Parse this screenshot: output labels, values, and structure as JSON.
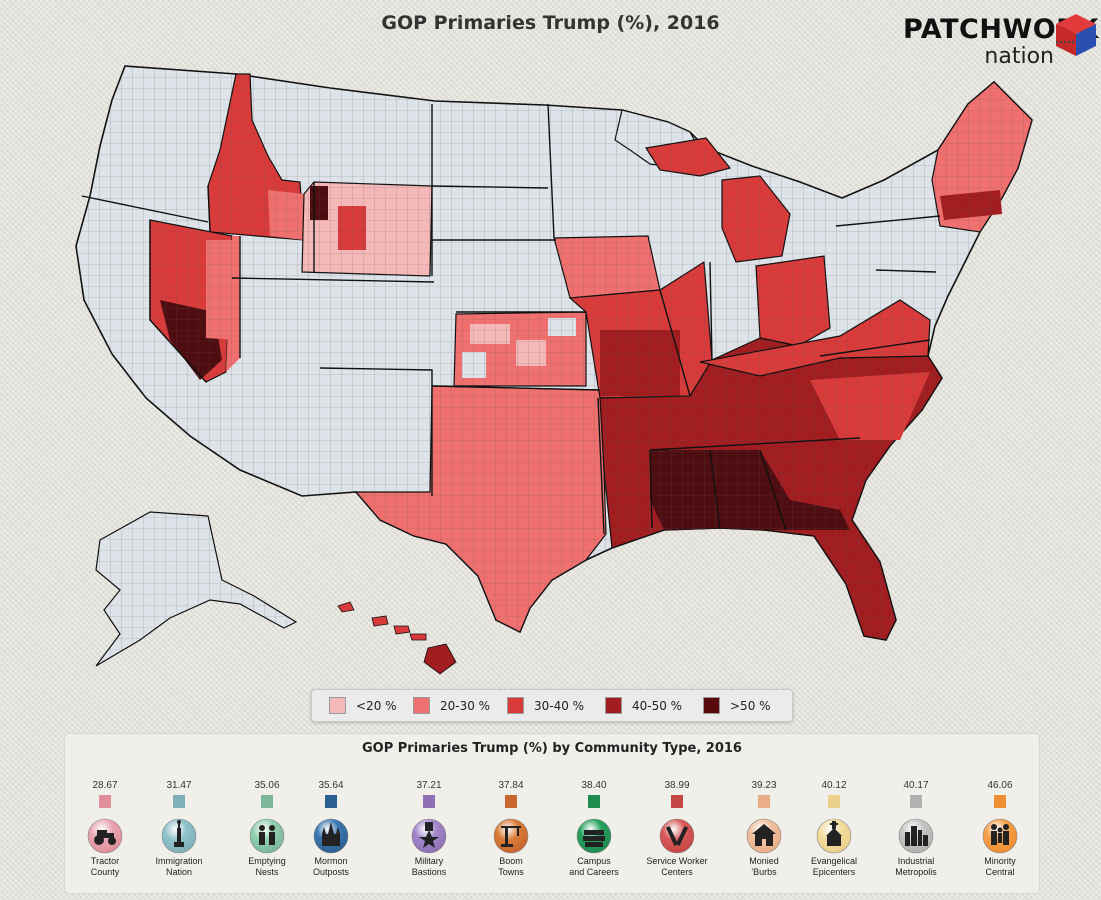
{
  "title": "GOP Primaries Trump (%), 2016",
  "logo": {
    "word": "PATCHWORK",
    "sub": "nation"
  },
  "colors": {
    "lt20": "#f5b8b8",
    "r20_30": "#f07070",
    "r30_40": "#d93a3a",
    "r40_50": "#a11d20",
    "gt50": "#4e0d10",
    "nodata": "#dde3e8",
    "water": "#e7e5de",
    "border": "#111111"
  },
  "legend": {
    "items": [
      {
        "label": "<20 %",
        "color": "#f5b8b8"
      },
      {
        "label": "20-30 %",
        "color": "#f07070"
      },
      {
        "label": "30-40 %",
        "color": "#d93a3a"
      },
      {
        "label": "40-50 %",
        "color": "#a11d20"
      },
      {
        "label": ">50 %",
        "color": "#5a0a0c"
      }
    ]
  },
  "community": {
    "title": "GOP Primaries Trump (%) by Community Type, 2016",
    "types": [
      {
        "value": "28.67",
        "label": "Tractor\nCounty",
        "color": "#e08e9a",
        "icon": "tractor-icon",
        "iconBg": "#e9a7b4"
      },
      {
        "value": "31.47",
        "label": "Immigration\nNation",
        "color": "#7fb0b9",
        "icon": "statue-of-liberty-icon",
        "iconBg": "#8fc3cb"
      },
      {
        "value": "35.06",
        "label": "Emptying\nNests",
        "color": "#7cb79a",
        "icon": "couple-icon",
        "iconBg": "#8fcfae"
      },
      {
        "value": "35.64",
        "label": "Mormon\nOutposts",
        "color": "#2c5f91",
        "icon": "temple-icon",
        "iconBg": "#3d79b4"
      },
      {
        "value": "37.21",
        "label": "Military\nBastions",
        "color": "#8f70b4",
        "icon": "medal-icon",
        "iconBg": "#a387cc"
      },
      {
        "value": "37.84",
        "label": "Boom\nTowns",
        "color": "#c8662e",
        "icon": "crane-icon",
        "iconBg": "#dc7c3a"
      },
      {
        "value": "38.40",
        "label": "Campus\nand Careers",
        "color": "#1e8b4f",
        "icon": "books-icon",
        "iconBg": "#25a15e"
      },
      {
        "value": "38.99",
        "label": "Service Worker\nCenters",
        "color": "#c64646",
        "icon": "tools-icon",
        "iconBg": "#d95a5a"
      },
      {
        "value": "39.23",
        "label": "Monied\n'Burbs",
        "color": "#e9ad88",
        "icon": "house-icon",
        "iconBg": "#f0bf9e"
      },
      {
        "value": "40.12",
        "label": "Evangelical\nEpicenters",
        "color": "#ecd18c",
        "icon": "church-icon",
        "iconBg": "#f3dc9e"
      },
      {
        "value": "40.17",
        "label": "Industrial\nMetropolis",
        "color": "#b1b1b1",
        "icon": "skyline-icon",
        "iconBg": "#c6c6c6"
      },
      {
        "value": "46.06",
        "label": "Minority\nCentral",
        "color": "#ef8f33",
        "icon": "people-icon",
        "iconBg": "#f5a04a"
      }
    ]
  }
}
